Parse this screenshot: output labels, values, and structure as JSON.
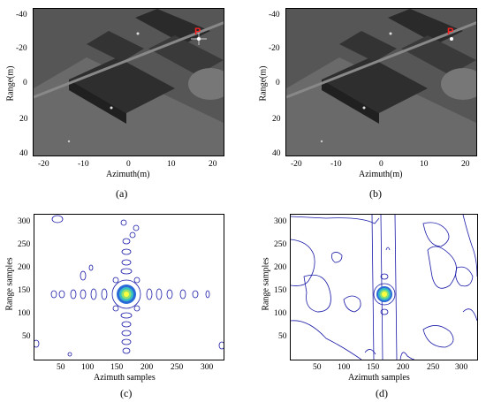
{
  "panels": [
    {
      "id": "a",
      "caption": "(a)",
      "xlabel": "Azimuth(m)",
      "ylabel": "Range(m)",
      "xticks": [
        "-20",
        "-10",
        "0",
        "10",
        "20"
      ],
      "yticks": [
        "-40",
        "-20",
        "0",
        "20",
        "40"
      ],
      "marker": "P"
    },
    {
      "id": "b",
      "caption": "(b)",
      "xlabel": "Azimuth(m)",
      "ylabel": "Range(m)",
      "xticks": [
        "-20",
        "-10",
        "0",
        "10",
        "20"
      ],
      "yticks": [
        "-40",
        "-20",
        "0",
        "20",
        "40"
      ],
      "marker": "P"
    },
    {
      "id": "c",
      "caption": "(c)",
      "xlabel": "Azimuth samples",
      "ylabel": "Range samples",
      "xticks": [
        "50",
        "100",
        "150",
        "200",
        "250",
        "300"
      ],
      "yticks": [
        "300",
        "250",
        "200",
        "150",
        "100",
        "50"
      ]
    },
    {
      "id": "d",
      "caption": "(d)",
      "xlabel": "Azimuth samples",
      "ylabel": "Range samples",
      "xticks": [
        "50",
        "100",
        "150",
        "200",
        "250",
        "300"
      ],
      "yticks": [
        "300",
        "250",
        "200",
        "150",
        "100",
        "50"
      ]
    }
  ],
  "colors": {
    "contour_outer": "#1a1aa8",
    "peak_center": "#ffff40",
    "marker": "#ff2020"
  }
}
